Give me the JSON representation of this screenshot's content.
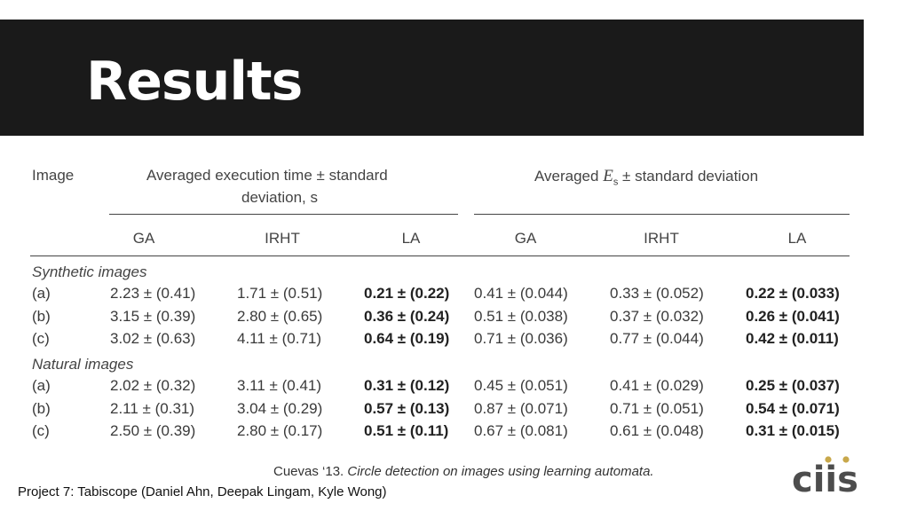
{
  "slide": {
    "title": "Results"
  },
  "table": {
    "header": {
      "image": "Image",
      "time_group_line1": "Averaged execution time ± standard",
      "time_group_line2": "deviation, s",
      "es_group_prefix": "Averaged ",
      "es_symbol": "E",
      "es_subscript": "s",
      "es_group_suffix": " ± standard deviation",
      "cols": [
        "GA",
        "IRHT",
        "LA",
        "GA",
        "IRHT",
        "LA"
      ]
    },
    "sections": [
      {
        "label": "Synthetic images",
        "rows": [
          {
            "id": "(a)",
            "cells": [
              "2.23 ± (0.41)",
              "1.71 ± (0.51)",
              "0.21 ± (0.22)",
              "0.41 ± (0.044)",
              "0.33 ± (0.052)",
              "0.22 ± (0.033)"
            ]
          },
          {
            "id": "(b)",
            "cells": [
              "3.15 ± (0.39)",
              "2.80 ± (0.65)",
              "0.36 ± (0.24)",
              "0.51 ± (0.038)",
              "0.37 ± (0.032)",
              "0.26 ± (0.041)"
            ]
          },
          {
            "id": "(c)",
            "cells": [
              "3.02 ± (0.63)",
              "4.11 ± (0.71)",
              "0.64 ± (0.19)",
              "0.71 ± (0.036)",
              "0.77 ± (0.044)",
              "0.42 ± (0.011)"
            ]
          }
        ]
      },
      {
        "label": "Natural images",
        "rows": [
          {
            "id": "(a)",
            "cells": [
              "2.02 ± (0.32)",
              "3.11 ± (0.41)",
              "0.31 ± (0.12)",
              "0.45 ± (0.051)",
              "0.41 ± (0.029)",
              "0.25 ± (0.037)"
            ]
          },
          {
            "id": "(b)",
            "cells": [
              "2.11 ± (0.31)",
              "3.04 ± (0.29)",
              "0.57 ± (0.13)",
              "0.87 ± (0.071)",
              "0.71 ± (0.051)",
              "0.54 ± (0.071)"
            ]
          },
          {
            "id": "(c)",
            "cells": [
              "2.50 ± (0.39)",
              "2.80 ± (0.17)",
              "0.51 ± (0.11)",
              "0.67 ± (0.081)",
              "0.61 ± (0.048)",
              "0.31 ± (0.015)"
            ]
          }
        ]
      }
    ],
    "bold_columns": [
      2,
      5
    ]
  },
  "citation": {
    "authors": "Cuevas ‘13. ",
    "title": "Circle detection on images using learning automata."
  },
  "footer": {
    "text": "Project 7: Tabiscope (Daniel Ahn, Deepak Lingam, Kyle Wong)"
  },
  "logo": {
    "text": "ciis",
    "color": "#4d4d4d",
    "dot_color": "#c8a84b"
  },
  "colors": {
    "title_bar": "#1a1a1a",
    "title_text": "#ffffff"
  }
}
